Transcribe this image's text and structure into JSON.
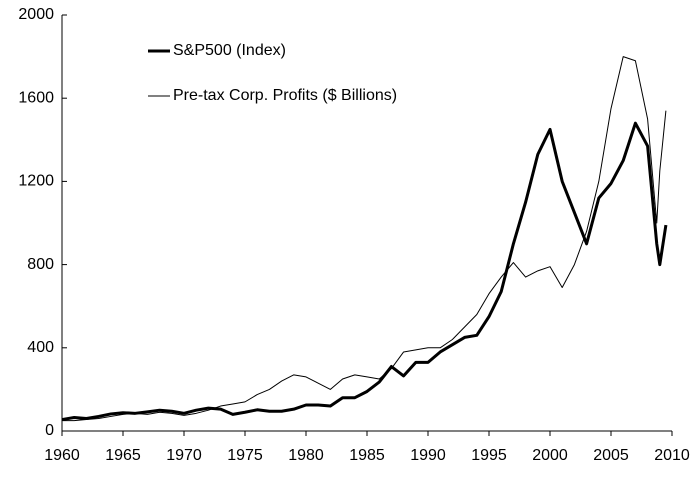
{
  "chart_data": {
    "type": "line",
    "x": [
      1960,
      1961,
      1962,
      1963,
      1964,
      1965,
      1966,
      1967,
      1968,
      1969,
      1970,
      1971,
      1972,
      1973,
      1974,
      1975,
      1976,
      1977,
      1978,
      1979,
      1980,
      1981,
      1982,
      1983,
      1984,
      1985,
      1986,
      1987,
      1988,
      1989,
      1990,
      1991,
      1992,
      1993,
      1994,
      1995,
      1996,
      1997,
      1998,
      1999,
      2000,
      2001,
      2002,
      2003,
      2004,
      2005,
      2006,
      2007,
      2008,
      2008.75,
      2009,
      2009.5
    ],
    "series": [
      {
        "name": "S&P500 (Index)",
        "color": "#000000",
        "width": 3,
        "values": [
          55,
          65,
          60,
          70,
          82,
          88,
          85,
          92,
          100,
          95,
          85,
          100,
          110,
          105,
          80,
          90,
          102,
          95,
          95,
          105,
          125,
          125,
          120,
          160,
          160,
          190,
          235,
          310,
          265,
          330,
          330,
          380,
          415,
          450,
          460,
          550,
          670,
          900,
          1100,
          1330,
          1450,
          1200,
          1050,
          900,
          1120,
          1190,
          1300,
          1480,
          1370,
          900,
          800,
          990
        ]
      },
      {
        "name": "Pre-tax Corp. Profits ($ Billions)",
        "color": "#000000",
        "width": 1,
        "values": [
          50,
          50,
          55,
          60,
          70,
          80,
          85,
          80,
          90,
          85,
          75,
          85,
          100,
          120,
          130,
          140,
          175,
          200,
          240,
          270,
          260,
          230,
          200,
          250,
          270,
          260,
          250,
          300,
          380,
          390,
          400,
          400,
          440,
          500,
          560,
          660,
          740,
          810,
          740,
          770,
          790,
          690,
          800,
          960,
          1200,
          1550,
          1800,
          1780,
          1500,
          1000,
          1250,
          1540
        ]
      }
    ],
    "xlim": [
      1960,
      2010
    ],
    "xticks": [
      1960,
      1965,
      1970,
      1975,
      1980,
      1985,
      1990,
      1995,
      2000,
      2005,
      2010
    ],
    "ylim": [
      0,
      2000
    ],
    "yticks": [
      0,
      400,
      800,
      1200,
      1600,
      2000
    ],
    "legend": "top-left",
    "grid": false
  }
}
